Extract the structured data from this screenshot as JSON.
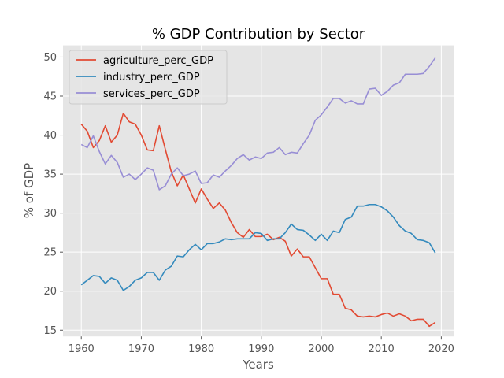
{
  "chart_data": {
    "type": "line",
    "title": "% GDP Contribution by Sector",
    "xlabel": "Years",
    "ylabel": "% of GDP",
    "xlim": [
      1956.95,
      2022.05
    ],
    "ylim": [
      14.2,
      51.5
    ],
    "xticks": [
      1960,
      1970,
      1980,
      1990,
      2000,
      2010,
      2020
    ],
    "yticks": [
      15,
      20,
      25,
      30,
      35,
      40,
      45,
      50
    ],
    "grid": true,
    "legend_position": "top-left",
    "x": [
      1960,
      1961,
      1962,
      1963,
      1964,
      1965,
      1966,
      1967,
      1968,
      1969,
      1970,
      1971,
      1972,
      1973,
      1974,
      1975,
      1976,
      1977,
      1978,
      1979,
      1980,
      1981,
      1982,
      1983,
      1984,
      1985,
      1986,
      1987,
      1988,
      1989,
      1990,
      1991,
      1992,
      1993,
      1994,
      1995,
      1996,
      1997,
      1998,
      1999,
      2000,
      2001,
      2002,
      2003,
      2004,
      2005,
      2006,
      2007,
      2008,
      2009,
      2010,
      2011,
      2012,
      2013,
      2014,
      2015,
      2016,
      2017,
      2018,
      2019
    ],
    "series": [
      {
        "name": "agriculture_perc_GDP",
        "color": "#E24A33",
        "values": [
          41.4,
          40.5,
          38.4,
          39.3,
          41.2,
          39.1,
          40.0,
          42.8,
          41.7,
          41.4,
          40.0,
          38.1,
          38.0,
          41.2,
          38.2,
          35.3,
          33.5,
          34.9,
          33.1,
          31.3,
          33.1,
          31.8,
          30.6,
          31.3,
          30.4,
          28.8,
          27.5,
          26.9,
          27.9,
          27.0,
          27.0,
          27.3,
          26.6,
          26.9,
          26.4,
          24.5,
          25.4,
          24.4,
          24.4,
          23.0,
          21.6,
          21.6,
          19.6,
          19.6,
          17.8,
          17.6,
          16.8,
          16.7,
          16.8,
          16.7,
          17.0,
          17.2,
          16.8,
          17.1,
          16.8,
          16.2,
          16.4,
          16.4,
          15.5,
          16.0
        ]
      },
      {
        "name": "industry_perc_GDP",
        "color": "#348ABD",
        "values": [
          20.8,
          21.4,
          22.0,
          21.9,
          21.0,
          21.7,
          21.4,
          20.1,
          20.6,
          21.4,
          21.7,
          22.4,
          22.4,
          21.4,
          22.7,
          23.2,
          24.5,
          24.4,
          25.3,
          26.0,
          25.3,
          26.1,
          26.1,
          26.3,
          26.7,
          26.6,
          26.7,
          26.7,
          26.7,
          27.5,
          27.4,
          26.5,
          26.7,
          26.7,
          27.5,
          28.6,
          27.9,
          27.8,
          27.2,
          26.5,
          27.3,
          26.5,
          27.7,
          27.5,
          29.2,
          29.5,
          30.9,
          30.9,
          31.1,
          31.1,
          30.8,
          30.3,
          29.5,
          28.4,
          27.7,
          27.4,
          26.6,
          26.5,
          26.2,
          24.9
        ]
      },
      {
        "name": "services_perc_GDP",
        "color": "#988ED5",
        "values": [
          38.8,
          38.4,
          39.9,
          37.9,
          36.3,
          37.4,
          36.5,
          34.6,
          35.0,
          34.3,
          35.0,
          35.8,
          35.5,
          33.0,
          33.5,
          35.0,
          35.8,
          34.8,
          35.0,
          35.4,
          33.8,
          33.9,
          34.9,
          34.6,
          35.4,
          36.1,
          37.0,
          37.5,
          36.8,
          37.2,
          37.0,
          37.7,
          37.8,
          38.4,
          37.5,
          37.8,
          37.7,
          38.9,
          40.0,
          41.9,
          42.6,
          43.6,
          44.7,
          44.7,
          44.1,
          44.4,
          44.0,
          44.0,
          45.9,
          46.0,
          45.1,
          45.6,
          46.4,
          46.7,
          47.8,
          47.8,
          47.8,
          47.9,
          48.8,
          49.9
        ]
      }
    ]
  }
}
